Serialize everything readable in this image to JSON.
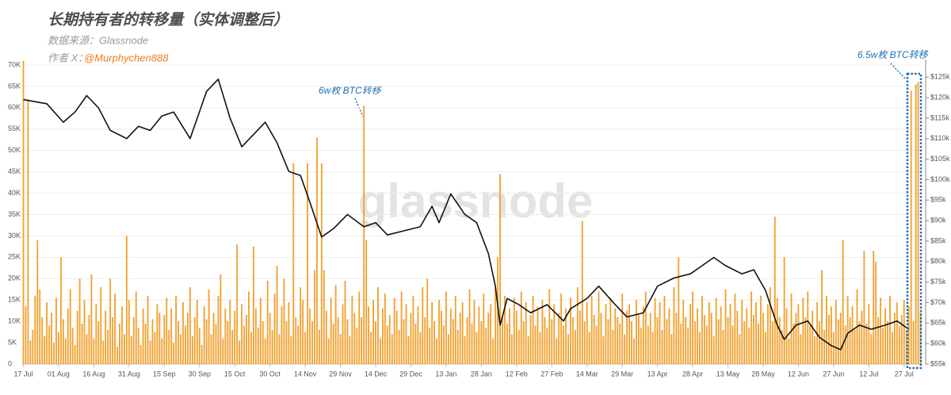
{
  "chart_data": {
    "type": "bar",
    "title": "长期持有者的转移量（实体调整后）",
    "subtitle": "数据来源：Glassnode",
    "author_label": "作者 X：",
    "author_handle": "@Murphychen888",
    "watermark": "glassnode",
    "annotations": [
      "6w枚 BTC转移",
      "6.5w枚 BTC转移"
    ],
    "x": [
      0,
      1,
      2,
      3,
      4,
      5,
      6,
      7,
      8,
      9,
      10,
      11,
      12,
      13,
      14,
      15,
      16,
      17,
      18,
      19,
      20,
      21,
      22,
      23,
      24,
      25,
      26,
      27,
      28,
      29,
      30,
      31,
      32,
      33,
      34,
      35,
      36,
      37,
      38,
      39,
      40,
      41,
      42,
      43,
      44,
      45,
      46,
      47,
      48,
      49,
      50,
      51,
      52,
      53,
      54,
      55,
      56,
      57,
      58,
      59,
      60,
      61,
      62,
      63,
      64,
      65,
      66,
      67,
      68,
      69,
      70,
      71,
      72,
      73,
      74,
      75,
      76,
      77,
      78,
      79,
      80,
      81,
      82,
      83,
      84,
      85,
      86,
      87,
      88,
      89,
      90,
      91,
      92,
      93,
      94,
      95,
      96,
      97,
      98,
      99,
      100,
      101,
      102,
      103,
      104,
      105,
      106,
      107,
      108,
      109,
      110,
      111,
      112,
      113,
      114,
      115,
      116,
      117,
      118,
      119,
      120,
      121,
      122,
      123,
      124,
      125,
      126,
      127,
      128,
      129,
      130,
      131,
      132,
      133,
      134,
      135,
      136,
      137,
      138,
      139,
      140,
      141,
      142,
      143,
      144,
      145,
      146,
      147,
      148,
      149,
      150,
      151,
      152,
      153,
      154,
      155,
      156,
      157,
      158,
      159,
      160,
      161,
      162,
      163,
      164,
      165,
      166,
      167,
      168,
      169,
      170,
      171,
      172,
      173,
      174,
      175,
      176,
      177,
      178,
      179,
      180,
      181,
      182,
      183,
      184,
      185,
      186,
      187,
      188,
      189,
      190,
      191,
      192,
      193,
      194,
      195,
      196,
      197,
      198,
      199,
      200,
      201,
      202,
      203,
      204,
      205,
      206,
      207,
      208,
      209,
      210,
      211,
      212,
      213,
      214,
      215,
      216,
      217,
      218,
      219,
      220,
      221,
      222,
      223,
      224,
      225,
      226,
      227,
      228,
      229,
      230,
      231,
      232,
      233,
      234,
      235,
      236,
      237,
      238,
      239,
      240,
      241,
      242,
      243,
      244,
      245,
      246,
      247,
      248,
      249,
      250,
      251,
      252,
      253,
      254,
      255,
      256,
      257,
      258,
      259,
      260,
      261,
      262,
      263,
      264,
      265,
      266,
      267,
      268,
      269,
      270,
      271,
      272,
      273,
      274,
      275,
      276,
      277,
      278,
      279,
      280,
      281,
      282,
      283,
      284,
      285,
      286,
      287,
      288,
      289,
      290,
      291,
      292,
      293,
      294,
      295,
      296,
      297,
      298,
      299,
      300,
      301,
      302,
      303,
      304,
      305,
      306,
      307,
      308,
      309,
      310,
      311,
      312,
      313,
      314,
      315,
      316,
      317,
      318,
      319,
      320,
      321,
      322,
      323,
      324,
      325,
      326,
      327,
      328,
      329,
      330,
      331,
      332,
      333,
      334,
      335,
      336,
      337,
      338,
      339,
      340,
      341,
      342,
      343,
      344,
      345,
      346,
      347,
      348,
      349,
      350,
      351,
      352,
      353,
      354,
      355,
      356,
      357,
      358,
      359,
      360,
      361,
      362,
      363,
      364,
      365,
      366,
      367,
      368,
      369,
      370,
      371,
      372,
      373,
      374,
      375,
      376,
      377,
      378,
      379,
      380,
      381,
      382
    ],
    "xlim": [
      -0.5,
      382.5
    ],
    "xticks": [
      {
        "value": 0,
        "label": "17 Jul"
      },
      {
        "value": 15,
        "label": "01 Aug"
      },
      {
        "value": 30,
        "label": "16 Aug"
      },
      {
        "value": 45,
        "label": "31 Aug"
      },
      {
        "value": 60,
        "label": "15 Sep"
      },
      {
        "value": 75,
        "label": "30 Sep"
      },
      {
        "value": 90,
        "label": "15 Oct"
      },
      {
        "value": 105,
        "label": "30 Oct"
      },
      {
        "value": 120,
        "label": "14 Nov"
      },
      {
        "value": 135,
        "label": "29 Nov"
      },
      {
        "value": 150,
        "label": "14 Dec"
      },
      {
        "value": 165,
        "label": "29 Dec"
      },
      {
        "value": 180,
        "label": "13 Jan"
      },
      {
        "value": 195,
        "label": "28 Jan"
      },
      {
        "value": 210,
        "label": "12 Feb"
      },
      {
        "value": 225,
        "label": "27 Feb"
      },
      {
        "value": 240,
        "label": "14 Mar"
      },
      {
        "value": 255,
        "label": "29 Mar"
      },
      {
        "value": 270,
        "label": "13 Apr"
      },
      {
        "value": 285,
        "label": "28 Apr"
      },
      {
        "value": 300,
        "label": "13 May"
      },
      {
        "value": 315,
        "label": "28 May"
      },
      {
        "value": 330,
        "label": "12 Jun"
      },
      {
        "value": 345,
        "label": "27 Jun"
      },
      {
        "value": 360,
        "label": "12 Jul"
      },
      {
        "value": 375,
        "label": "27 Jul"
      }
    ],
    "ylim": [
      0,
      71300
    ],
    "yticks": [
      0,
      {
        "value": 5000,
        "label": "5K"
      },
      {
        "value": 10000,
        "label": "10K"
      },
      {
        "value": 15000,
        "label": "15K"
      },
      {
        "value": 20000,
        "label": "20K"
      },
      {
        "value": 25000,
        "label": "25K"
      },
      {
        "value": 30000,
        "label": "30K"
      },
      {
        "value": 35000,
        "label": "35K"
      },
      {
        "value": 40000,
        "label": "40K"
      },
      {
        "value": 45000,
        "label": "45K"
      },
      {
        "value": 50000,
        "label": "50K"
      },
      {
        "value": 55000,
        "label": "55K"
      },
      {
        "value": 60000,
        "label": "60K"
      },
      {
        "value": 65000,
        "label": "65K"
      },
      {
        "value": 70000,
        "label": "70K"
      }
    ],
    "y2lim": [
      55000,
      129300
    ],
    "y2ticks": [
      {
        "value": 55000,
        "label": "$55k"
      },
      {
        "value": 60000,
        "label": "$60k"
      },
      {
        "value": 65000,
        "label": "$65k"
      },
      {
        "value": 70000,
        "label": "$70k"
      },
      {
        "value": 75000,
        "label": "$75k"
      },
      {
        "value": 80000,
        "label": "$80k"
      },
      {
        "value": 85000,
        "label": "$85k"
      },
      {
        "value": 90000,
        "label": "$90k"
      },
      {
        "value": 95000,
        "label": "$95k"
      },
      {
        "value": 100000,
        "label": "$100k"
      },
      {
        "value": 105000,
        "label": "$105k"
      },
      {
        "value": 110000,
        "label": "$110k"
      },
      {
        "value": 115000,
        "label": "$115k"
      },
      {
        "value": 120000,
        "label": "$120k"
      },
      {
        "value": 125000,
        "label": "$125k"
      }
    ],
    "grid": true,
    "series": [
      {
        "type": "bar",
        "color": "#f2a12e",
        "values": [
          71000,
          13500,
          62000,
          5500,
          8000,
          16000,
          29000,
          17500,
          11000,
          6500,
          14500,
          9000,
          12000,
          5000,
          15500,
          7500,
          25000,
          10500,
          6000,
          13000,
          17500,
          8500,
          4500,
          12500,
          20000,
          9500,
          15000,
          7000,
          11500,
          21000,
          6000,
          14000,
          10000,
          18000,
          5500,
          12500,
          8000,
          20000,
          11000,
          16500,
          4000,
          9500,
          13500,
          7000,
          30000,
          15000,
          6500,
          11000,
          17000,
          8500,
          4500,
          13000,
          9500,
          16000,
          5500,
          10500,
          7500,
          14000,
          12000,
          6000,
          11500,
          15500,
          8000,
          13000,
          5000,
          16000,
          10000,
          7000,
          14500,
          9000,
          12000,
          18000,
          6500,
          11000,
          15000,
          8500,
          4500,
          13500,
          10500,
          17500,
          7000,
          12000,
          9500,
          16000,
          21000,
          6000,
          13000,
          10000,
          15000,
          8000,
          12500,
          28000,
          5500,
          14000,
          9000,
          11500,
          17000,
          7500,
          27500,
          13000,
          8500,
          15500,
          10000,
          6000,
          19500,
          12000,
          8000,
          16500,
          23000,
          7000,
          13500,
          20000,
          10000,
          14500,
          6500,
          47000,
          11000,
          9000,
          18000,
          15000,
          7500,
          47000,
          13000,
          10000,
          22000,
          53000,
          8000,
          47000,
          22000,
          12500,
          6000,
          15500,
          9500,
          18500,
          11000,
          7000,
          14000,
          19500,
          10500,
          6500,
          16000,
          12000,
          8500,
          17000,
          11000,
          60500,
          29000,
          13500,
          7500,
          15000,
          10000,
          18000,
          6000,
          13000,
          16500,
          9000,
          11500,
          7000,
          15500,
          12500,
          8000,
          17000,
          10500,
          14000,
          6500,
          12000,
          16000,
          9500,
          13500,
          7500,
          18000,
          11000,
          20000,
          8500,
          14500,
          10000,
          6000,
          15000,
          12500,
          9000,
          17000,
          7000,
          13000,
          10500,
          16000,
          8000,
          12000,
          14500,
          6500,
          11000,
          17500,
          9500,
          15000,
          7500,
          13500,
          10000,
          16500,
          8500,
          12000,
          14000,
          6000,
          18000,
          25000,
          44500,
          11000,
          16000,
          9500,
          13000,
          7000,
          15500,
          12500,
          8000,
          17000,
          10000,
          14500,
          6500,
          11500,
          16000,
          9000,
          13500,
          7500,
          15000,
          11000,
          8500,
          17500,
          10500,
          14000,
          6000,
          12000,
          16500,
          9000,
          13000,
          7000,
          15500,
          11000,
          8000,
          18000,
          12500,
          33500,
          10000,
          14500,
          7500,
          16000,
          11500,
          9000,
          17000,
          12000,
          6500,
          14000,
          10500,
          15500,
          8000,
          13000,
          11000,
          9500,
          16500,
          7000,
          12500,
          14000,
          10000,
          6000,
          15000,
          11500,
          8500,
          13500,
          17000,
          9000,
          12000,
          7500,
          15500,
          11000,
          14500,
          8000,
          16000,
          10500,
          13000,
          7000,
          18000,
          12000,
          25000,
          9500,
          15000,
          11000,
          8500,
          14000,
          17000,
          10000,
          13000,
          7500,
          16000,
          11500,
          9000,
          14500,
          12000,
          6500,
          15500,
          10500,
          13500,
          8000,
          17500,
          11000,
          14000,
          9000,
          16500,
          12500,
          7000,
          15000,
          10000,
          13000,
          8500,
          17000,
          11500,
          14500,
          9500,
          16000,
          12000,
          7500,
          14000,
          18000,
          10000,
          34500,
          15500,
          11000,
          8000,
          25000,
          13000,
          6000,
          16500,
          9500,
          12000,
          14000,
          7000,
          15500,
          11000,
          17000,
          9000,
          12500,
          6500,
          14500,
          10000,
          22000,
          8000,
          16000,
          11500,
          13500,
          7500,
          15000,
          10500,
          12000,
          29000,
          9000,
          16000,
          11000,
          13500,
          8000,
          17500,
          10000,
          12500,
          26500,
          9500,
          14000,
          7000,
          26500,
          24000,
          11000,
          15500,
          8500,
          13000,
          10000,
          16000,
          7500,
          12000,
          14500,
          9000,
          11500,
          15000,
          8000,
          13500,
          64000,
          10000,
          65500,
          66000,
          12000
        ]
      },
      {
        "type": "line",
        "axis": "y2",
        "color": "#111111",
        "x": [
          0,
          5,
          10,
          17,
          22,
          27,
          32,
          37,
          44,
          49,
          54,
          59,
          64,
          71,
          78,
          83,
          88,
          93,
          98,
          103,
          108,
          113,
          118,
          122,
          127,
          132,
          138,
          145,
          150,
          155,
          162,
          169,
          174,
          177,
          182,
          188,
          193,
          198,
          201,
          203,
          206,
          211,
          216,
          223,
          230,
          233,
          240,
          245,
          252,
          257,
          264,
          270,
          277,
          284,
          289,
          294,
          299,
          306,
          311,
          316,
          321,
          324,
          329,
          334,
          339,
          344,
          348,
          351,
          356,
          361,
          367,
          372,
          377
        ],
        "values": [
          119500,
          119000,
          118500,
          114000,
          116500,
          120500,
          117500,
          112000,
          110000,
          113000,
          112000,
          115500,
          116500,
          110000,
          121500,
          124500,
          115000,
          108000,
          111000,
          114000,
          109000,
          102000,
          101000,
          94500,
          86000,
          88000,
          91500,
          88500,
          89500,
          86500,
          87500,
          88500,
          93500,
          89500,
          96500,
          91500,
          89500,
          82000,
          74000,
          64500,
          71000,
          69500,
          67500,
          69500,
          65500,
          68500,
          71000,
          74000,
          69500,
          66500,
          67500,
          74000,
          76000,
          77000,
          79000,
          81000,
          79000,
          77000,
          78000,
          73000,
          64500,
          61000,
          64500,
          65500,
          61500,
          59500,
          58500,
          62500,
          64500,
          63500,
          64500,
          65500,
          63500
        ]
      }
    ]
  }
}
